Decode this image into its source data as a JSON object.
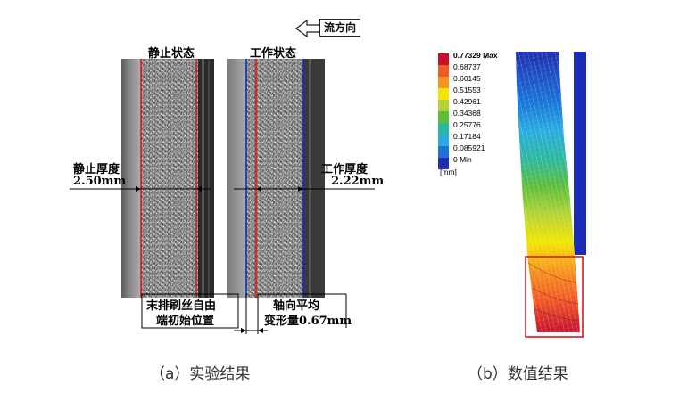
{
  "panel_a": {
    "flow_label": "流方向",
    "static_state_title": "静止状态",
    "working_state_title": "工作状态",
    "static_thickness_label": "静止厚度",
    "static_thickness_value": "2.50mm",
    "working_thickness_label": "工作厚度",
    "working_thickness_value": "2.22mm",
    "brush_end_line1": "末排刷丝自由",
    "brush_end_line2": "端初始位置",
    "axial_line1": "轴向平均",
    "axial_line2": "变形量0.67mm",
    "caption": "（a）实验结果"
  },
  "panel_b": {
    "legend_values": [
      "0.77329 Max",
      "0.68737",
      "0.60145",
      "0.51553",
      "0.42961",
      "0.34368",
      "0.25776",
      "0.17184",
      "0.085921",
      "0 Min"
    ],
    "legend_colors": [
      "#c8102e",
      "#f15a24",
      "#f7941d",
      "#f2e500",
      "#b5d334",
      "#5cbf3a",
      "#2bb8a0",
      "#29abe2",
      "#1a74d8",
      "#1f2fb0"
    ],
    "unit": "[mm]",
    "caption": "（b）数值结果"
  }
}
